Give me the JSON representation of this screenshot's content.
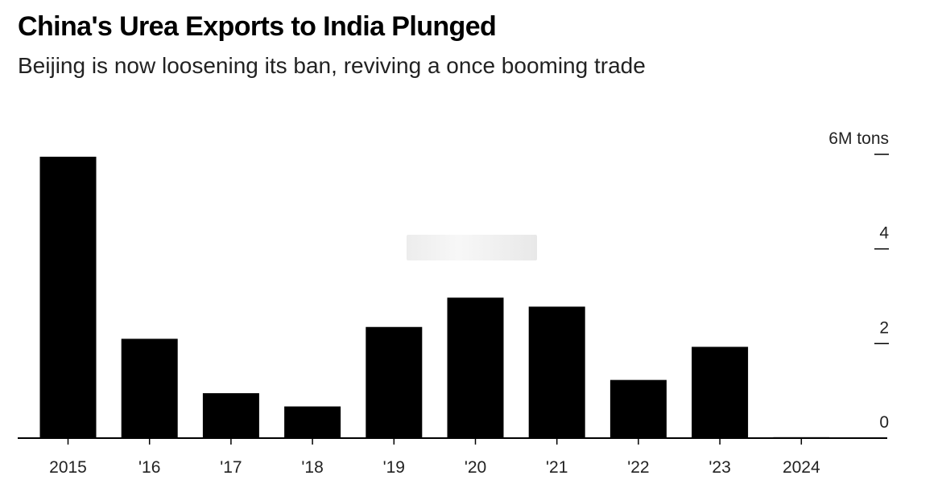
{
  "header": {
    "title": "China's Urea Exports to India Plunged",
    "subtitle": "Beijing is now loosening its ban, reviving a once booming trade"
  },
  "chart_data": {
    "type": "bar",
    "title": "China's Urea Exports to India Plunged",
    "subtitle": "Beijing is now loosening its ban, reviving a once booming trade",
    "categories": [
      "2015",
      "'16",
      "'17",
      "'18",
      "'19",
      "'20",
      "'21",
      "'22",
      "'23",
      "2024"
    ],
    "values": [
      5.95,
      2.1,
      0.95,
      0.67,
      2.35,
      2.97,
      2.78,
      1.23,
      1.93,
      0.02
    ],
    "ylim": [
      0,
      6
    ],
    "yticks": [
      0,
      2,
      4,
      6
    ],
    "ytick_labels": [
      "0",
      "2",
      "4",
      "6M tons"
    ],
    "y_axis_side": "right",
    "bar_color": "#000000",
    "grid": false
  }
}
